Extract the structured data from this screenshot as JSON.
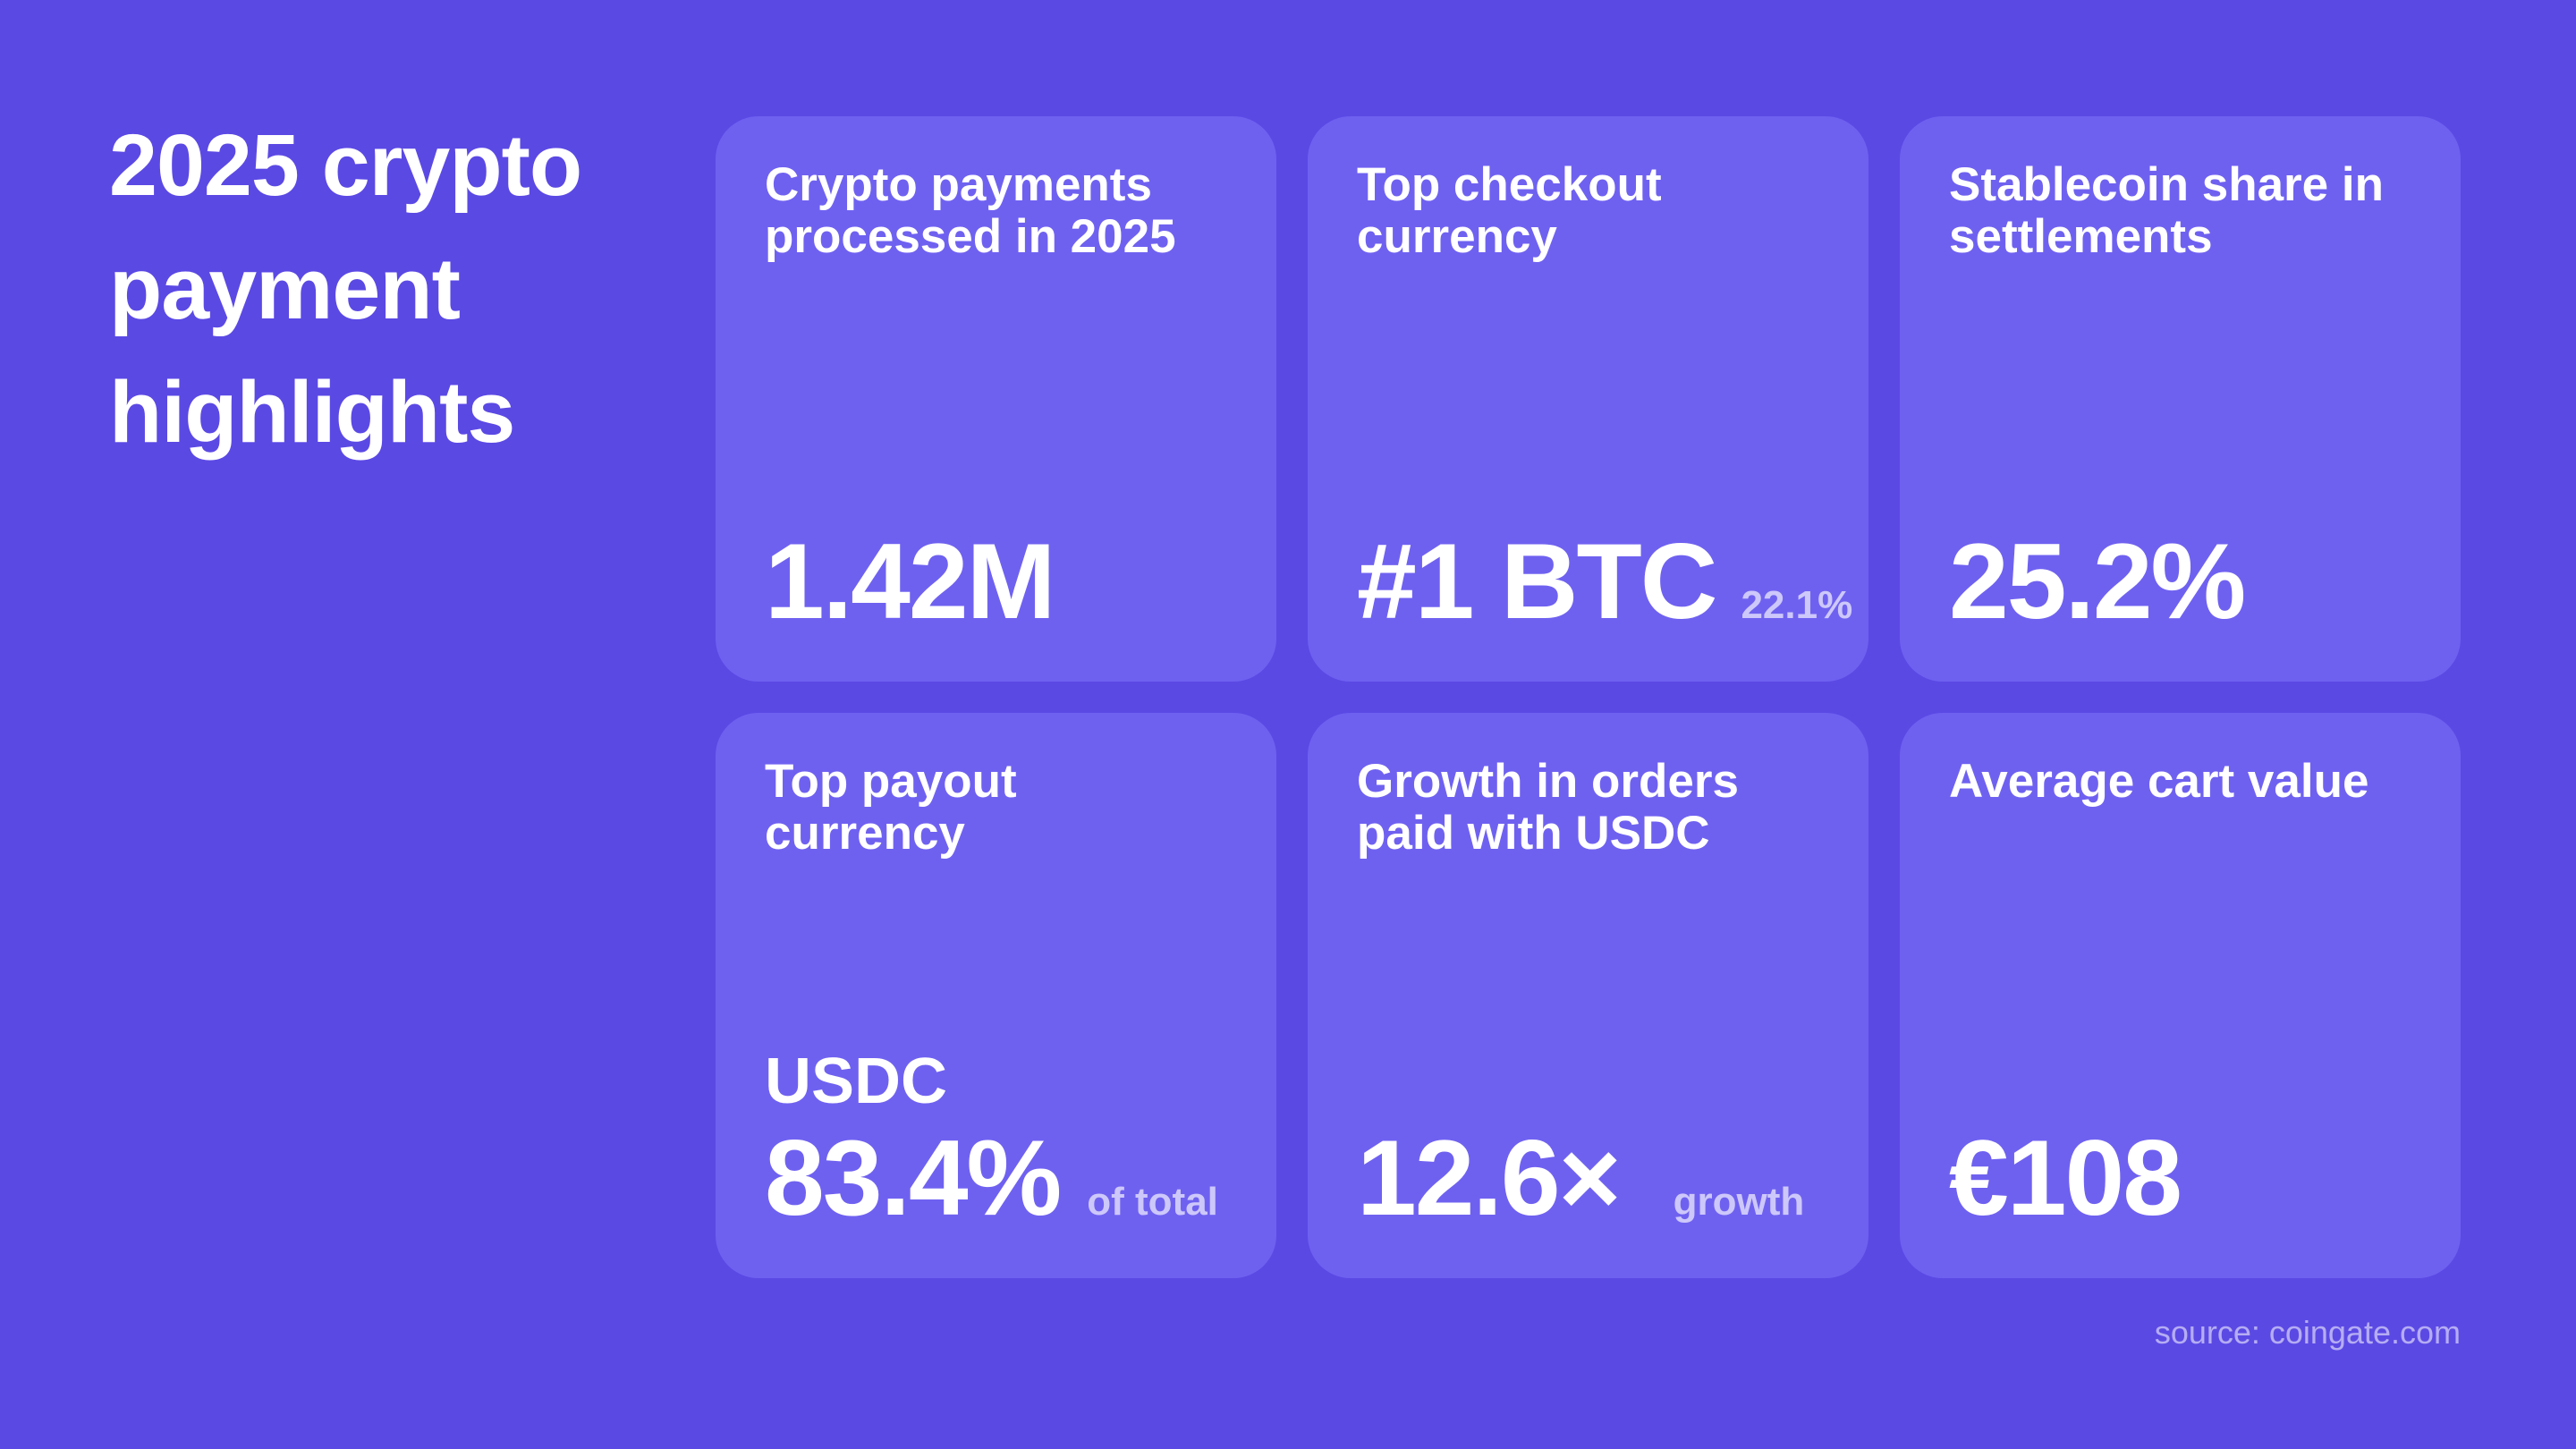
{
  "page": {
    "title": "2025 crypto payment highlights",
    "source": "source: coingate.com"
  },
  "colors": {
    "background": "#5B49E4",
    "card": "#6F61F0",
    "text_primary": "#FFFFFF",
    "text_muted": "#CFC9F6",
    "source_text": "#B3ABEF"
  },
  "cards": [
    {
      "label": "Crypto payments processed in 2025",
      "value": "1.42M",
      "suffix": ""
    },
    {
      "label": "Top checkout currency",
      "value": "#1 BTC",
      "suffix": "22.1%"
    },
    {
      "label": "Stablecoin share in settlements",
      "value": "25.2%",
      "suffix": ""
    },
    {
      "label": "Top payout currency",
      "pre_value": "USDC",
      "value": "83.4%",
      "suffix": "of total"
    },
    {
      "label": "Growth in orders paid with USDC",
      "value": "12.6×",
      "suffix": "growth"
    },
    {
      "label": "Average cart value",
      "value": "€108",
      "suffix": ""
    }
  ],
  "chart_data": {
    "type": "table",
    "title": "2025 crypto payment highlights",
    "source": "source: coingate.com",
    "items": [
      {
        "label": "Crypto payments processed in 2025",
        "value": "1.42M"
      },
      {
        "label": "Top checkout currency",
        "value": "#1 BTC",
        "note": "22.1%"
      },
      {
        "label": "Stablecoin share in settlements",
        "value": "25.2%"
      },
      {
        "label": "Top payout currency",
        "value": "USDC 83.4%",
        "note": "of total"
      },
      {
        "label": "Growth in orders paid with USDC",
        "value": "12.6×",
        "note": "growth"
      },
      {
        "label": "Average cart value",
        "value": "€108"
      }
    ]
  }
}
